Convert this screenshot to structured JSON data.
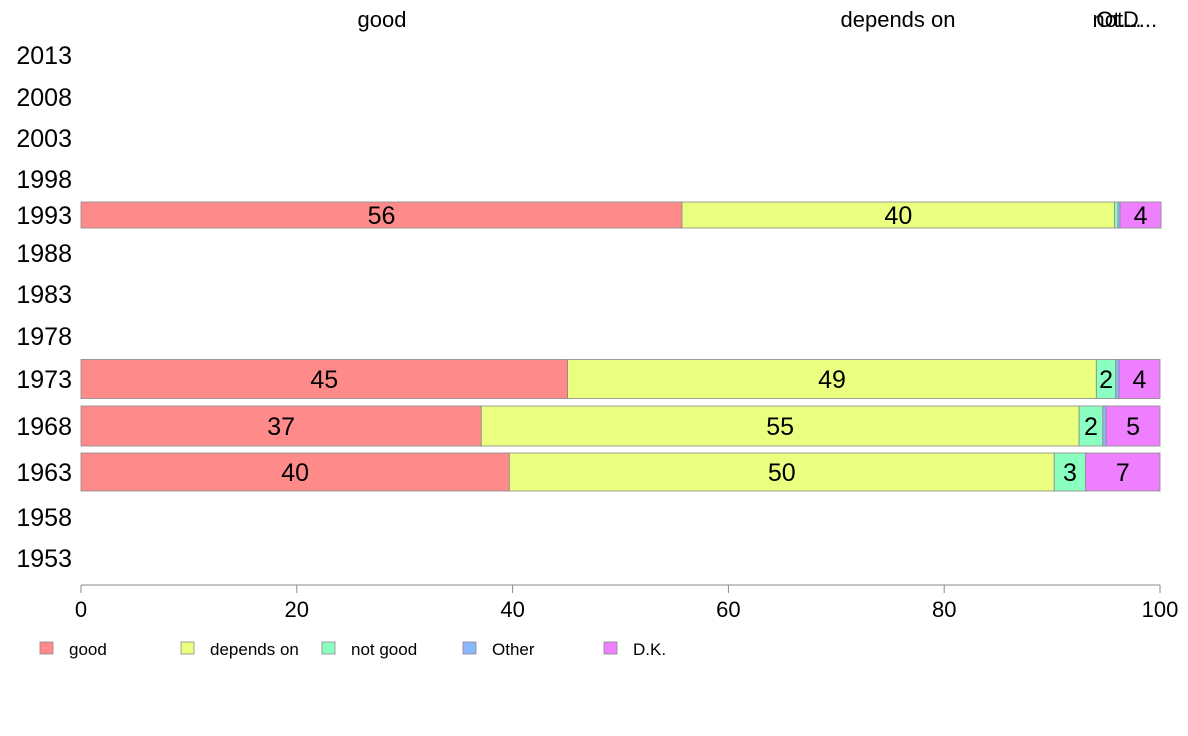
{
  "chart_data": {
    "type": "bar",
    "orientation": "horizontal",
    "stacked": true,
    "categories": [
      "2013",
      "2008",
      "2003",
      "1998",
      "1993",
      "1988",
      "1983",
      "1978",
      "1973",
      "1968",
      "1963",
      "1958",
      "1953"
    ],
    "series": [
      {
        "name": "good",
        "color": "#ff8a8a",
        "values": [
          null,
          null,
          null,
          null,
          55.7,
          null,
          null,
          null,
          45.1,
          37.1,
          39.7,
          null,
          null
        ]
      },
      {
        "name": "depends on",
        "color": "#eaff80",
        "values": [
          null,
          null,
          null,
          null,
          40.1,
          null,
          null,
          null,
          49.0,
          55.4,
          50.5,
          null,
          null
        ]
      },
      {
        "name": "not good",
        "color": "#8affc0",
        "values": [
          null,
          null,
          null,
          null,
          0.3,
          null,
          null,
          null,
          1.8,
          2.2,
          2.9,
          null,
          null
        ]
      },
      {
        "name": "Other",
        "color": "#8ab8ff",
        "values": [
          null,
          null,
          null,
          null,
          0.2,
          null,
          null,
          null,
          0.3,
          0.3,
          0,
          null,
          null
        ]
      },
      {
        "name": "D.K.",
        "color": "#ee80ff",
        "values": [
          null,
          null,
          null,
          null,
          3.8,
          null,
          null,
          null,
          3.8,
          5.0,
          6.9,
          null,
          null
        ]
      }
    ],
    "data_labels": {
      "1993": [
        "56",
        "40",
        "",
        "",
        "4"
      ],
      "1973": [
        "45",
        "49",
        "2",
        "",
        "4"
      ],
      "1968": [
        "37",
        "55",
        "2",
        "",
        "5"
      ],
      "1963": [
        "40",
        "50",
        "3",
        "",
        "7"
      ]
    },
    "top_labels": [
      "good",
      "depends on",
      "not...",
      "Ot...",
      "D..."
    ],
    "xlim": [
      0,
      100
    ],
    "xticks": [
      "0",
      "20",
      "40",
      "60",
      "80",
      "100"
    ],
    "grid": false,
    "legend_position": "bottom",
    "title": "",
    "xlabel": "",
    "ylabel": ""
  }
}
